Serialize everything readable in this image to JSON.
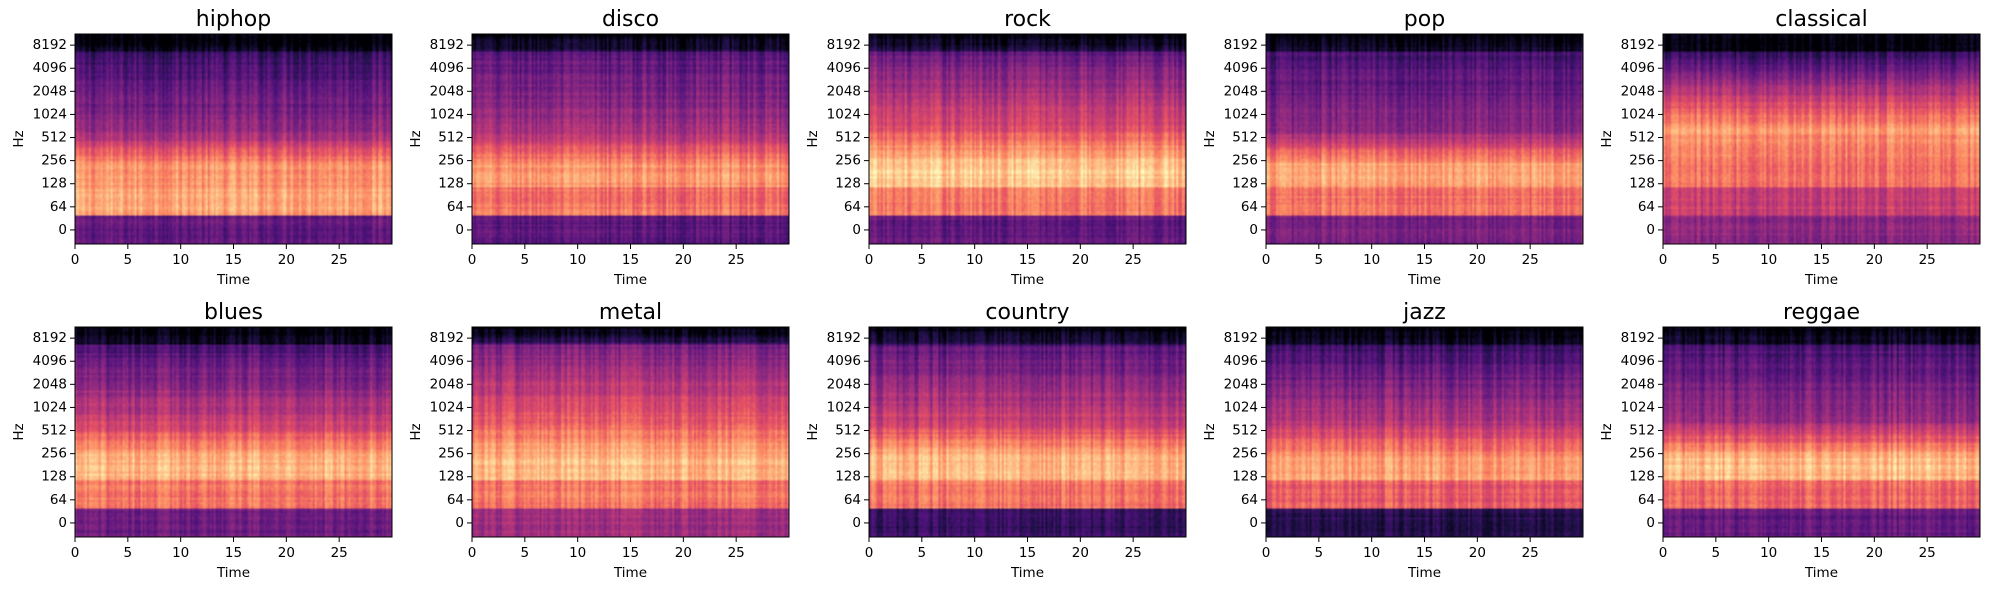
{
  "chart_data": [
    {
      "type": "heatmap",
      "title": "hiphop",
      "xlabel": "Time",
      "ylabel": "Hz",
      "x_ticks": [
        "0",
        "5",
        "10",
        "15",
        "20",
        "25"
      ],
      "y_ticks": [
        "0",
        "64",
        "128",
        "256",
        "512",
        "1024",
        "2048",
        "4096",
        "8192"
      ],
      "xlim": [
        0,
        30
      ],
      "y_scale": "log",
      "colormap": "magma"
    },
    {
      "type": "heatmap",
      "title": "disco",
      "xlabel": "Time",
      "ylabel": "Hz",
      "x_ticks": [
        "0",
        "5",
        "10",
        "15",
        "20",
        "25"
      ],
      "y_ticks": [
        "0",
        "64",
        "128",
        "256",
        "512",
        "1024",
        "2048",
        "4096",
        "8192"
      ],
      "xlim": [
        0,
        30
      ],
      "y_scale": "log",
      "colormap": "magma"
    },
    {
      "type": "heatmap",
      "title": "rock",
      "xlabel": "Time",
      "ylabel": "Hz",
      "x_ticks": [
        "0",
        "5",
        "10",
        "15",
        "20",
        "25"
      ],
      "y_ticks": [
        "0",
        "64",
        "128",
        "256",
        "512",
        "1024",
        "2048",
        "4096",
        "8192"
      ],
      "xlim": [
        0,
        30
      ],
      "y_scale": "log",
      "colormap": "magma"
    },
    {
      "type": "heatmap",
      "title": "pop",
      "xlabel": "Time",
      "ylabel": "Hz",
      "x_ticks": [
        "0",
        "5",
        "10",
        "15",
        "20",
        "25"
      ],
      "y_ticks": [
        "0",
        "64",
        "128",
        "256",
        "512",
        "1024",
        "2048",
        "4096",
        "8192"
      ],
      "xlim": [
        0,
        30
      ],
      "y_scale": "log",
      "colormap": "magma"
    },
    {
      "type": "heatmap",
      "title": "classical",
      "xlabel": "Time",
      "ylabel": "Hz",
      "x_ticks": [
        "0",
        "5",
        "10",
        "15",
        "20",
        "25"
      ],
      "y_ticks": [
        "0",
        "64",
        "128",
        "256",
        "512",
        "1024",
        "2048",
        "4096",
        "8192"
      ],
      "xlim": [
        0,
        30
      ],
      "y_scale": "log",
      "colormap": "magma"
    },
    {
      "type": "heatmap",
      "title": "blues",
      "xlabel": "Time",
      "ylabel": "Hz",
      "x_ticks": [
        "0",
        "5",
        "10",
        "15",
        "20",
        "25"
      ],
      "y_ticks": [
        "0",
        "64",
        "128",
        "256",
        "512",
        "1024",
        "2048",
        "4096",
        "8192"
      ],
      "xlim": [
        0,
        30
      ],
      "y_scale": "log",
      "colormap": "magma"
    },
    {
      "type": "heatmap",
      "title": "metal",
      "xlabel": "Time",
      "ylabel": "Hz",
      "x_ticks": [
        "0",
        "5",
        "10",
        "15",
        "20",
        "25"
      ],
      "y_ticks": [
        "0",
        "64",
        "128",
        "256",
        "512",
        "1024",
        "2048",
        "4096",
        "8192"
      ],
      "xlim": [
        0,
        30
      ],
      "y_scale": "log",
      "colormap": "magma"
    },
    {
      "type": "heatmap",
      "title": "country",
      "xlabel": "Time",
      "ylabel": "Hz",
      "x_ticks": [
        "0",
        "5",
        "10",
        "15",
        "20",
        "25"
      ],
      "y_ticks": [
        "0",
        "64",
        "128",
        "256",
        "512",
        "1024",
        "2048",
        "4096",
        "8192"
      ],
      "xlim": [
        0,
        30
      ],
      "y_scale": "log",
      "colormap": "magma"
    },
    {
      "type": "heatmap",
      "title": "jazz",
      "xlabel": "Time",
      "ylabel": "Hz",
      "x_ticks": [
        "0",
        "5",
        "10",
        "15",
        "20",
        "25"
      ],
      "y_ticks": [
        "0",
        "64",
        "128",
        "256",
        "512",
        "1024",
        "2048",
        "4096",
        "8192"
      ],
      "xlim": [
        0,
        30
      ],
      "y_scale": "log",
      "colormap": "magma"
    },
    {
      "type": "heatmap",
      "title": "reggae",
      "xlabel": "Time",
      "ylabel": "Hz",
      "x_ticks": [
        "0",
        "5",
        "10",
        "15",
        "20",
        "25"
      ],
      "y_ticks": [
        "0",
        "64",
        "128",
        "256",
        "512",
        "1024",
        "2048",
        "4096",
        "8192"
      ],
      "xlim": [
        0,
        30
      ],
      "y_scale": "log",
      "colormap": "magma"
    }
  ]
}
